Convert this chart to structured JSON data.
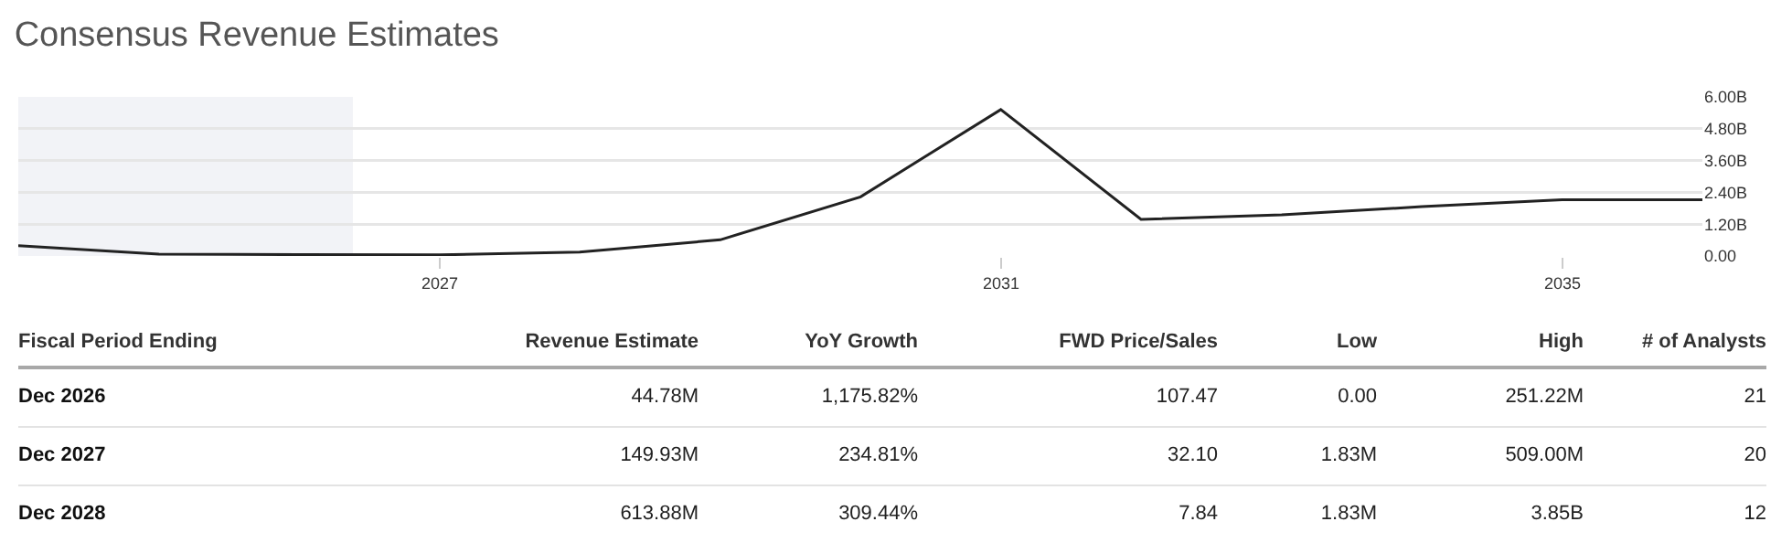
{
  "chart_data": [
    {
      "type": "line",
      "title": "Consensus Revenue Estimates",
      "x": [
        "2023-12-31",
        "2024-12-31",
        "2025-12-31",
        "2026-12-31",
        "2027-12-31",
        "2028-12-31",
        "2029-12-31",
        "2030-12-31",
        "2031-12-31",
        "2032-12-31",
        "2033-12-31",
        "2034-12-31",
        "2035-12-31"
      ],
      "series": [
        {
          "color": "#222222",
          "values": [
            0.39,
            0.07,
            0.05,
            0.04,
            0.15,
            0.61,
            2.23,
            5.52,
            1.38,
            1.55,
            1.86,
            2.12,
            2.12
          ]
        }
      ],
      "xlim": [
        "2023-12-31",
        "2035-12-31"
      ],
      "xticks": [
        "2027",
        "2031",
        "2035"
      ],
      "ylim": [
        0,
        6
      ],
      "yticks": [
        {
          "value": 0,
          "label": "0.00"
        },
        {
          "value": 1.2,
          "label": "1.20B"
        },
        {
          "value": 2.4,
          "label": "2.40B"
        },
        {
          "value": 3.6,
          "label": "3.60B"
        },
        {
          "value": 4.8,
          "label": "4.80B"
        },
        {
          "value": 6,
          "label": "6.00B"
        }
      ],
      "bands": [
        {
          "axis": "x",
          "from": "2023-12-31",
          "to": "2026-05-20",
          "color": "#f2f3f7"
        }
      ],
      "grid": "y",
      "marker": "none",
      "line_style": "solid"
    },
    {
      "type": "other",
      "annotations": [
        "Fiscal Period Ending",
        "Revenue Estimate",
        "YoY Growth",
        "FWD Price/Sales",
        "Low",
        "High",
        "# of Analysts",
        "Dec 2026",
        "44.78M",
        "1,175.82%",
        "107.47",
        "0.00",
        "251.22M",
        "21",
        "Dec 2027",
        "149.93M",
        "234.81%",
        "32.10",
        "1.83M",
        "509.00M",
        "20",
        "Dec 2028",
        "613.88M",
        "309.44%",
        "7.84",
        "1.83M",
        "3.85B",
        "12"
      ]
    }
  ]
}
